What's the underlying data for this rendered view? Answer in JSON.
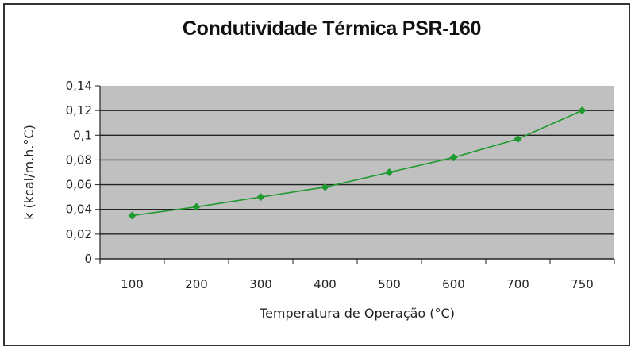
{
  "chart_data": {
    "type": "line",
    "title": "Condutividade Térmica PSR-160",
    "xlabel": "Temperatura de Operação (°C)",
    "ylabel": "k (kcal/m.h.°C)",
    "categories": [
      "100",
      "200",
      "300",
      "400",
      "500",
      "600",
      "700",
      "750"
    ],
    "series": [
      {
        "name": "k",
        "values": [
          0.035,
          0.042,
          0.05,
          0.058,
          0.07,
          0.082,
          0.097,
          0.12
        ],
        "color": "#1e9a2e",
        "marker": "diamond"
      }
    ],
    "ylim": [
      0,
      0.14
    ],
    "yticks": [
      "0",
      "0,02",
      "0,04",
      "0,06",
      "0,08",
      "0,1",
      "0,12",
      "0,14"
    ],
    "grid": true,
    "legend": "none",
    "plot_background": "#c0c0c0"
  }
}
